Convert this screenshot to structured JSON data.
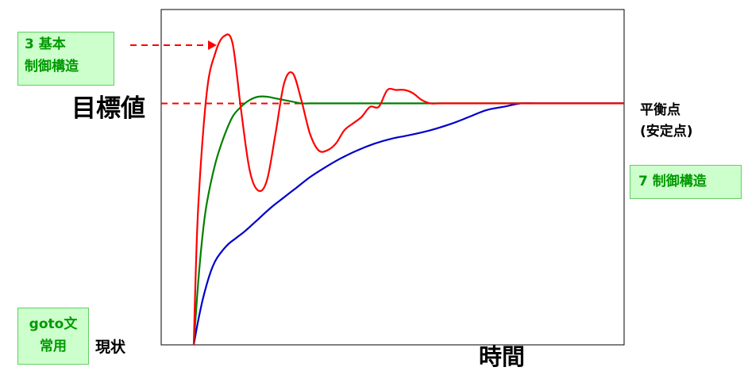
{
  "labels": {
    "target_value": "目標値",
    "equilibrium_line1": "平衡点",
    "equilibrium_line2": "(安定点)",
    "current_state": "現状",
    "time_axis": "時間"
  },
  "boxes": {
    "basic_structures_line1": "3 基本",
    "basic_structures_line2": "制御構造",
    "seven_structures": "7 制御構造",
    "goto_line1": "goto文",
    "goto_line2": "常用"
  },
  "colors": {
    "red_series": "#ff0000",
    "green_series": "#008000",
    "blue_series": "#0000cc",
    "target_line": "#ff0000",
    "box_fill": "#ccffcc",
    "box_text": "#009900"
  },
  "chart_data": {
    "type": "line",
    "title": "",
    "xlabel": "時間",
    "ylabel": "",
    "xlim": [
      0,
      100
    ],
    "ylim": [
      0,
      100
    ],
    "target_y": 72,
    "grid": false,
    "legend": "none",
    "series": [
      {
        "color": "#ff0000",
        "x": [
          0,
          1,
          3,
          5,
          7,
          9,
          11,
          13,
          15,
          17,
          19,
          21,
          23,
          25,
          27,
          29,
          31,
          33,
          35,
          37,
          39,
          41,
          43,
          45,
          47,
          49,
          51,
          53,
          55,
          57,
          59,
          61,
          63,
          65,
          67,
          69,
          71,
          73,
          75,
          100
        ],
        "y": [
          0,
          40,
          75,
          87,
          92,
          90,
          70,
          52,
          46,
          49,
          63,
          78,
          81,
          73,
          63,
          58,
          58,
          60,
          64,
          66,
          68,
          71,
          71,
          76,
          76,
          76,
          75,
          73,
          72,
          72,
          72,
          72,
          72,
          72,
          72,
          72,
          72,
          72,
          72,
          72
        ]
      },
      {
        "color": "#008000",
        "x": [
          0,
          1,
          2,
          3,
          5,
          7,
          9,
          11,
          13,
          15,
          17,
          19,
          21,
          23,
          25,
          27,
          30,
          33,
          36,
          40,
          45,
          50,
          60,
          70,
          80,
          90,
          100
        ],
        "y": [
          0,
          18,
          32,
          42,
          54,
          62,
          68,
          71,
          73,
          74,
          74,
          73.5,
          73,
          72.5,
          72,
          72,
          72,
          72,
          72,
          72,
          72,
          72,
          72,
          72,
          72,
          72,
          72
        ]
      },
      {
        "color": "#0000cc",
        "x": [
          0,
          1,
          2,
          3,
          4,
          5,
          6,
          8,
          10,
          12,
          15,
          18,
          21,
          24,
          27,
          30,
          34,
          38,
          42,
          46,
          50,
          55,
          60,
          64,
          68,
          72,
          76,
          80,
          84,
          88,
          100
        ],
        "y": [
          0,
          7,
          13,
          18,
          22,
          25,
          27,
          30,
          32,
          34,
          37.5,
          41,
          44,
          47,
          50,
          52.5,
          55.5,
          58,
          60,
          61.5,
          62.5,
          64,
          66,
          68,
          70,
          71,
          72,
          72,
          72,
          72,
          72
        ]
      }
    ]
  }
}
